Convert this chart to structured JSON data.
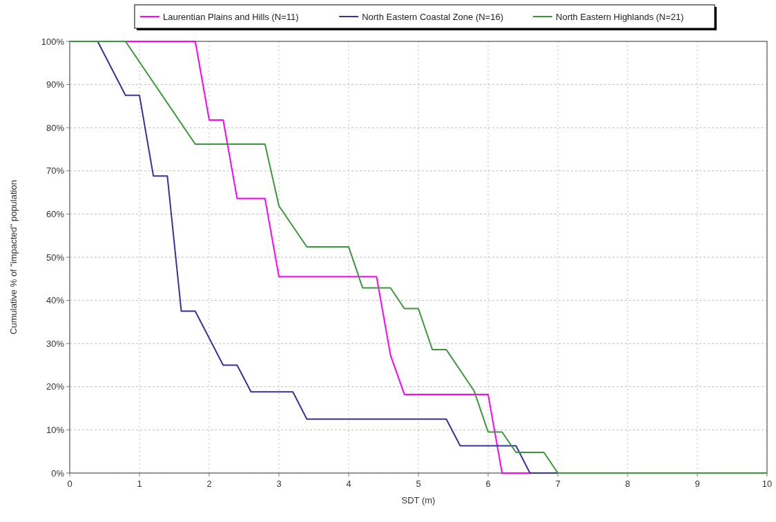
{
  "chart_data": {
    "type": "line",
    "xlabel": "SDT (m)",
    "ylabel": "Cumulative % of \"impacted\" population",
    "xlim": [
      0,
      10
    ],
    "xticks": [
      0,
      1,
      2,
      3,
      4,
      5,
      6,
      7,
      8,
      9,
      10
    ],
    "ylim": [
      0,
      100
    ],
    "yticks": [
      {
        "value": 0,
        "label": "0%"
      },
      {
        "value": 10,
        "label": "10%"
      },
      {
        "value": 20,
        "label": "20%"
      },
      {
        "value": 30,
        "label": "30%"
      },
      {
        "value": 40,
        "label": "40%"
      },
      {
        "value": 50,
        "label": "50%"
      },
      {
        "value": 60,
        "label": "60%"
      },
      {
        "value": 70,
        "label": "70%"
      },
      {
        "value": 80,
        "label": "80%"
      },
      {
        "value": 90,
        "label": "90%"
      },
      {
        "value": 100,
        "label": "100%"
      }
    ],
    "grid": true,
    "legend": "top",
    "marker": "none",
    "line_style": "solid",
    "series": [
      {
        "name": "Laurentian Plains and Hills (N=11)",
        "color": "#ff00ff",
        "x": [
          0,
          1.8,
          2,
          2.2,
          2.4,
          2.8,
          3,
          4.4,
          4.6,
          4.8,
          6,
          6.2,
          10
        ],
        "values": [
          100,
          100,
          81.8,
          81.8,
          63.6,
          63.6,
          45.5,
          45.5,
          27.3,
          18.2,
          18.2,
          0,
          0
        ]
      },
      {
        "name": "North Eastern Coastal Zone (N=16)",
        "color": "#333399",
        "x": [
          0,
          0.4,
          0.8,
          1,
          1.2,
          1.4,
          1.6,
          1.8,
          2.2,
          2.4,
          2.6,
          3.2,
          3.4,
          5.4,
          5.6,
          6.4,
          6.6,
          10
        ],
        "values": [
          100,
          100,
          87.5,
          87.5,
          68.8,
          68.8,
          37.5,
          37.5,
          25,
          25,
          18.8,
          18.8,
          12.5,
          12.5,
          6.3,
          6.3,
          0,
          0
        ]
      },
      {
        "name": "North Eastern Highlands (N=21)",
        "color": "#3a963a",
        "x": [
          0,
          0.8,
          1.8,
          2.8,
          3,
          3.4,
          4,
          4.2,
          4.6,
          4.8,
          5,
          5.2,
          5.4,
          5.8,
          6,
          6.2,
          6.4,
          6.8,
          7,
          10
        ],
        "values": [
          100,
          100,
          76.2,
          76.2,
          61.9,
          52.4,
          52.4,
          42.9,
          42.9,
          38.1,
          38.1,
          28.6,
          28.6,
          19,
          9.5,
          9.5,
          4.8,
          4.8,
          0,
          0
        ]
      }
    ]
  }
}
